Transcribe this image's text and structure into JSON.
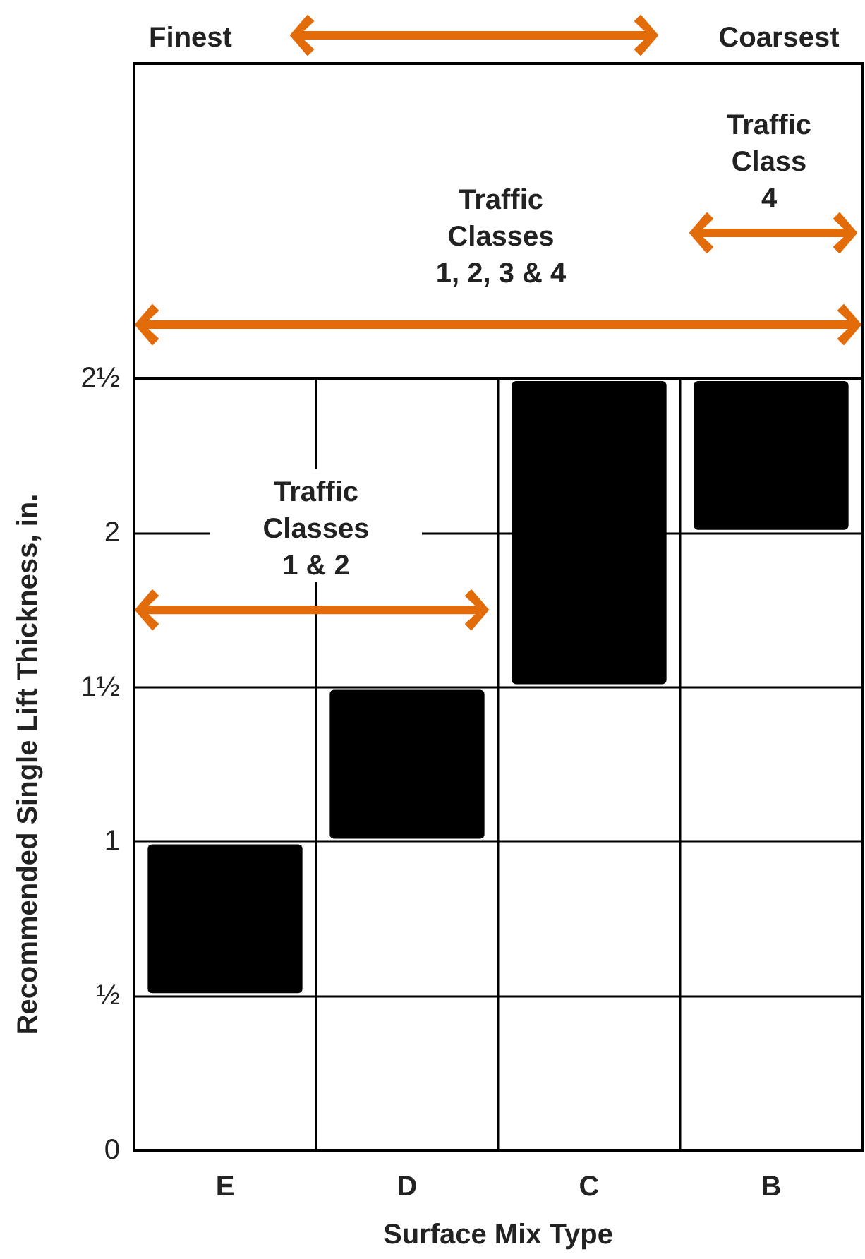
{
  "chart_data": {
    "type": "bar",
    "ylabel": "Recommended Single Lift Thickness, in.",
    "xlabel": "Surface Mix Type",
    "categories": [
      "E",
      "D",
      "C",
      "B"
    ],
    "base": [
      0.5,
      1,
      1.5,
      2
    ],
    "values": [
      0.5,
      0.5,
      1,
      0.5
    ],
    "color": "#000000",
    "ylim": [
      0,
      2.5
    ],
    "yticks": [
      0,
      {
        "value": 0.5,
        "label": "½"
      },
      1,
      {
        "value": 1.5,
        "label": "1½"
      },
      2,
      {
        "value": 2.5,
        "label": "2½"
      }
    ],
    "grid": true,
    "annotations": [
      "Finest",
      "Coarsest",
      "Traffic\nClass\n4",
      "Traffic\nClasses\n1, 2, 3 & 4",
      "Traffic\nClasses\n1 & 2"
    ]
  }
}
